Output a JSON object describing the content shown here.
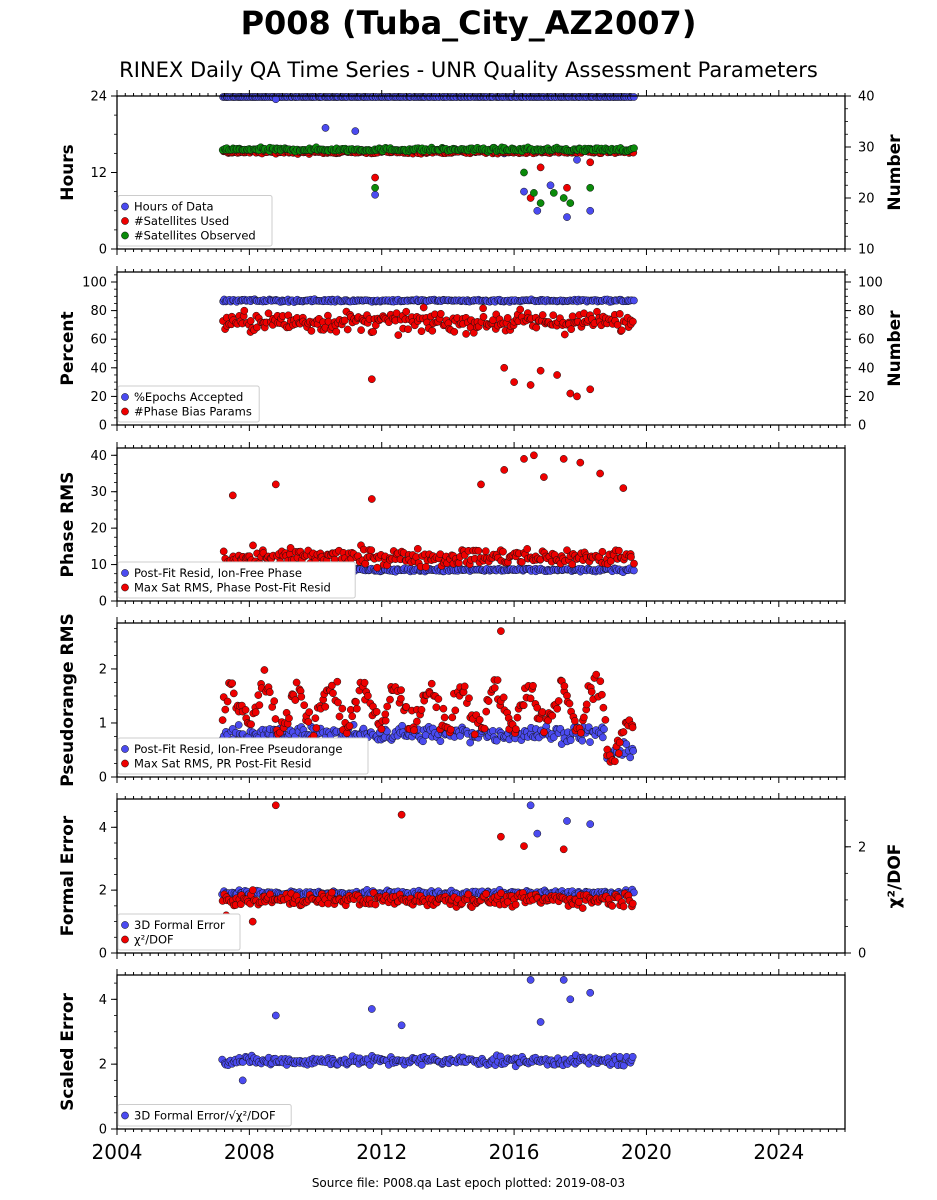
{
  "title": "P008 (Tuba_City_AZ2007)",
  "subtitle": "RINEX Daily QA Time Series - UNR Quality Assessment Parameters",
  "footer": "Source file: P008.qa Last epoch plotted: 2019-08-03",
  "colors": {
    "blue": "#4b4bf0",
    "red": "#ee0000",
    "green": "#0a8a0a"
  },
  "chart_data": [
    {
      "type": "scatter",
      "ylabel": "Hours",
      "ylabel_right": "Number",
      "xlim": [
        2004,
        2026
      ],
      "ylim": [
        0,
        24
      ],
      "yticks": [
        "0",
        "12",
        "24"
      ],
      "ylim_right": [
        10,
        40
      ],
      "yticks_right": [
        "10",
        "20",
        "30",
        "40"
      ],
      "legend": [
        "Hours of Data",
        "#Satellites Used",
        "#Satellites Observed"
      ],
      "series": [
        {
          "name": "Hours of Data",
          "axis": "left",
          "color": "blue",
          "typical": 24,
          "spread": 0.1,
          "outliers": [
            [
              2008.8,
              23.5
            ],
            [
              2010.3,
              19
            ],
            [
              2011.2,
              18.5
            ],
            [
              2011.8,
              8.5
            ],
            [
              2015.7,
              15
            ],
            [
              2016.3,
              9
            ],
            [
              2016.7,
              6
            ],
            [
              2017.1,
              10
            ],
            [
              2017.6,
              5
            ],
            [
              2017.9,
              14
            ],
            [
              2018.3,
              6
            ]
          ]
        },
        {
          "name": "#Satellites Used",
          "axis": "right",
          "color": "red",
          "typical": 29,
          "spread": 0.5,
          "outliers": [
            [
              2011.8,
              24
            ],
            [
              2016.5,
              20
            ],
            [
              2016.8,
              26
            ],
            [
              2017.6,
              22
            ],
            [
              2018.3,
              27
            ]
          ]
        },
        {
          "name": "#Satellites Observed",
          "axis": "right",
          "color": "green",
          "typical": 29.5,
          "spread": 0.6,
          "outliers": [
            [
              2011.8,
              22
            ],
            [
              2016.3,
              25
            ],
            [
              2016.6,
              21
            ],
            [
              2016.8,
              19
            ],
            [
              2017.2,
              21
            ],
            [
              2017.5,
              20
            ],
            [
              2017.7,
              19
            ],
            [
              2018.3,
              22
            ]
          ]
        }
      ]
    },
    {
      "type": "scatter",
      "ylabel": "Percent",
      "ylabel_right": "Number",
      "xlim": [
        2004,
        2026
      ],
      "ylim": [
        0,
        107
      ],
      "yticks": [
        "0",
        "20",
        "40",
        "60",
        "80",
        "100"
      ],
      "yticks_right": [
        "0",
        "20",
        "40",
        "60",
        "80",
        "100"
      ],
      "legend": [
        "%Epochs Accepted",
        "#Phase Bias Params"
      ],
      "series": [
        {
          "name": "%Epochs Accepted",
          "color": "blue",
          "typical": 87,
          "spread": 1.5,
          "outliers": []
        },
        {
          "name": "#Phase Bias Params",
          "color": "red",
          "typical": 72,
          "spread": 12,
          "outliers": [
            [
              2011.7,
              32
            ],
            [
              2015.7,
              40
            ],
            [
              2016.0,
              30
            ],
            [
              2016.5,
              28
            ],
            [
              2016.8,
              38
            ],
            [
              2017.3,
              35
            ],
            [
              2017.7,
              22
            ],
            [
              2017.9,
              20
            ],
            [
              2018.3,
              25
            ]
          ]
        }
      ]
    },
    {
      "type": "scatter",
      "ylabel": "Phase RMS",
      "xlim": [
        2004,
        2026
      ],
      "ylim": [
        0,
        42
      ],
      "yticks": [
        "0",
        "10",
        "20",
        "30",
        "40"
      ],
      "legend": [
        "Post-Fit Resid, Ion-Free Phase",
        "Max Sat RMS, Phase Post-Fit Resid"
      ],
      "series": [
        {
          "name": "Post-Fit Resid, Ion-Free Phase",
          "color": "blue",
          "typical": 8.5,
          "spread": 0.8,
          "outliers": []
        },
        {
          "name": "Max Sat RMS, Phase Post-Fit Resid",
          "color": "red",
          "typical": 12,
          "spread": 4,
          "outliers": [
            [
              2007.5,
              29
            ],
            [
              2008.8,
              32
            ],
            [
              2011.7,
              28
            ],
            [
              2015.0,
              32
            ],
            [
              2015.7,
              36
            ],
            [
              2016.3,
              39
            ],
            [
              2016.6,
              40
            ],
            [
              2016.9,
              34
            ],
            [
              2017.5,
              39
            ],
            [
              2018.0,
              38
            ],
            [
              2018.6,
              35
            ],
            [
              2019.3,
              31
            ]
          ]
        }
      ]
    },
    {
      "type": "scatter",
      "ylabel": "Pseudorange RMS",
      "xlim": [
        2004,
        2026
      ],
      "ylim": [
        0,
        2.85
      ],
      "yticks": [
        "0",
        "1",
        "2"
      ],
      "legend": [
        "Post-Fit Resid, Ion-Free Pseudorange",
        "Max Sat RMS, PR Post-Fit Resid"
      ],
      "series": [
        {
          "name": "Post-Fit Resid, Ion-Free Pseudorange",
          "color": "blue",
          "typical": 0.8,
          "spread": 0.25,
          "outliers": []
        },
        {
          "name": "Max Sat RMS, PR Post-Fit Resid",
          "color": "red",
          "typical": 1.3,
          "spread": 0.45,
          "outliers": [
            [
              2015.6,
              2.7
            ]
          ]
        }
      ]
    },
    {
      "type": "scatter",
      "ylabel": "Formal Error",
      "ylabel_right": "χ²/DOF",
      "xlim": [
        2004,
        2026
      ],
      "ylim": [
        0,
        4.9
      ],
      "yticks": [
        "0",
        "2",
        "4"
      ],
      "yticks_right": [
        "0",
        "2"
      ],
      "legend": [
        "3D Formal Error",
        "χ²/DOF"
      ],
      "series": [
        {
          "name": "3D Formal Error",
          "color": "blue",
          "typical": 1.9,
          "spread": 0.15,
          "outliers": [
            [
              2016.5,
              4.7
            ],
            [
              2016.7,
              3.8
            ],
            [
              2017.6,
              4.2
            ],
            [
              2018.3,
              4.1
            ]
          ]
        },
        {
          "name": "χ²/DOF",
          "color": "red",
          "typical": 1.7,
          "spread": 0.35,
          "outliers": [
            [
              2008.8,
              4.7
            ],
            [
              2012.6,
              4.4
            ],
            [
              2015.6,
              3.7
            ],
            [
              2016.3,
              3.4
            ],
            [
              2017.5,
              3.3
            ],
            [
              2007.3,
              1.2
            ],
            [
              2008.1,
              1.0
            ]
          ]
        }
      ]
    },
    {
      "type": "scatter",
      "ylabel": "Scaled Error",
      "xlim": [
        2004,
        2026
      ],
      "ylim": [
        0,
        4.75
      ],
      "yticks": [
        "0",
        "2",
        "4"
      ],
      "legend": [
        "3D Formal Error/√χ²/DOF"
      ],
      "series": [
        {
          "name": "3D Formal Error/√χ²/DOF",
          "color": "blue",
          "typical": 2.1,
          "spread": 0.25,
          "outliers": [
            [
              2008.8,
              3.5
            ],
            [
              2011.7,
              3.7
            ],
            [
              2012.6,
              3.2
            ],
            [
              2016.5,
              4.6
            ],
            [
              2016.8,
              3.3
            ],
            [
              2017.5,
              4.6
            ],
            [
              2017.7,
              4.0
            ],
            [
              2018.3,
              4.2
            ],
            [
              2007.8,
              1.5
            ]
          ]
        }
      ]
    }
  ],
  "x_axis": {
    "ticks": [
      "2004",
      "2008",
      "2012",
      "2016",
      "2020",
      "2024"
    ],
    "data_start": 2007.2,
    "data_end": 2019.6
  }
}
